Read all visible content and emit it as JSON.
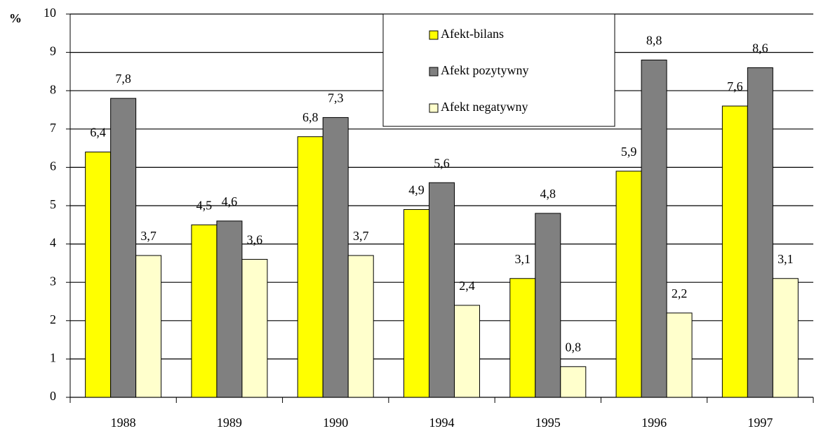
{
  "chart_data": {
    "type": "bar",
    "y_label": "%",
    "categories": [
      "1988",
      "1989",
      "1990",
      "1994",
      "1995",
      "1996",
      "1997"
    ],
    "series": [
      {
        "name": "Afekt-bilans",
        "color": "#ffff00",
        "values": [
          6.4,
          4.5,
          6.8,
          4.9,
          3.1,
          5.9,
          7.6
        ],
        "value_labels": [
          "6,4",
          "4,5",
          "6,8",
          "4,9",
          "3,1",
          "5,9",
          "7,6"
        ]
      },
      {
        "name": "Afekt pozytywny",
        "color": "#808080",
        "values": [
          7.8,
          4.6,
          7.3,
          5.6,
          4.8,
          8.8,
          8.6
        ],
        "value_labels": [
          "7,8",
          "4,6",
          "7,3",
          "5,6",
          "4,8",
          "8,8",
          "8,6"
        ]
      },
      {
        "name": "Afekt negatywny",
        "color": "#ffffcc",
        "values": [
          3.7,
          3.6,
          3.7,
          2.4,
          0.8,
          2.2,
          3.1
        ],
        "value_labels": [
          "3,7",
          "3,6",
          "3,7",
          "2,4",
          "0,8",
          "2,2",
          "3,1"
        ]
      }
    ],
    "ylim": [
      0,
      10
    ],
    "yticks": [
      0,
      1,
      2,
      3,
      4,
      5,
      6,
      7,
      8,
      9,
      10
    ],
    "grid": true
  }
}
